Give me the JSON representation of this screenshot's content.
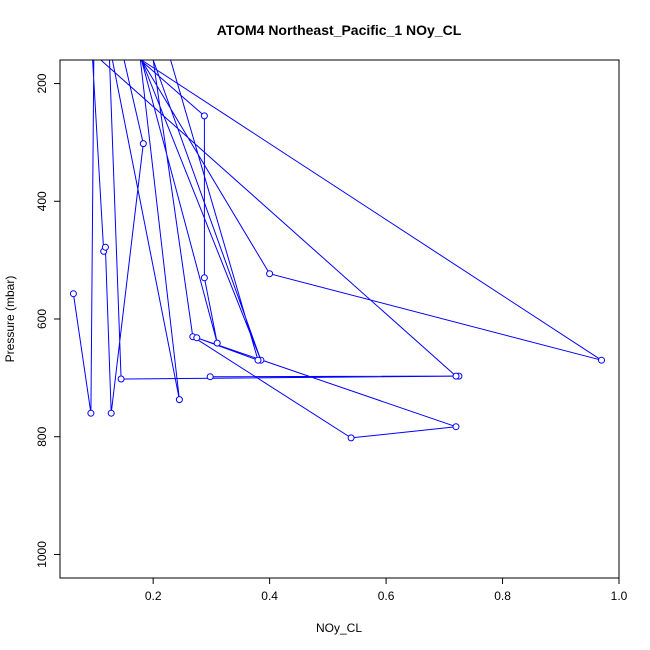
{
  "chart_data": {
    "type": "line",
    "title": "ATOM4 Northeast_Pacific_1 NOy_CL",
    "xlabel": "NOy_CL",
    "ylabel": "Pressure (mbar)",
    "xlim": [
      0.04,
      1.0
    ],
    "ylim": [
      1040,
      160
    ],
    "y_reversed": true,
    "x_ticks": [
      "0.2",
      "0.4",
      "0.6",
      "0.8",
      "1.0"
    ],
    "y_ticks": [
      "200",
      "400",
      "600",
      "800",
      "1000"
    ],
    "grid": false,
    "legend": "none",
    "line_color": "#0000ff",
    "marker": "open-circle",
    "series": [
      {
        "x": [
          0.063,
          0.093,
          0.098,
          0.096,
          0.115,
          0.118,
          0.128,
          0.183,
          0.15,
          0.125,
          0.145,
          0.725,
          0.298,
          0.72,
          0.11,
          0.13,
          0.245,
          0.178,
          0.288,
          0.288,
          0.31,
          0.18,
          0.97,
          0.4,
          0.18,
          0.385,
          0.2,
          0.268,
          0.54,
          0.72,
          0.275,
          0.38,
          0.23,
          0.15
        ],
        "y": [
          557,
          760,
          160,
          160,
          485,
          478,
          760,
          302,
          160,
          160,
          702,
          697,
          698,
          697,
          160,
          160,
          737,
          160,
          255,
          530,
          641,
          160,
          670,
          523,
          160,
          670,
          160,
          630,
          802,
          783,
          632,
          670,
          160,
          160
        ]
      }
    ]
  }
}
